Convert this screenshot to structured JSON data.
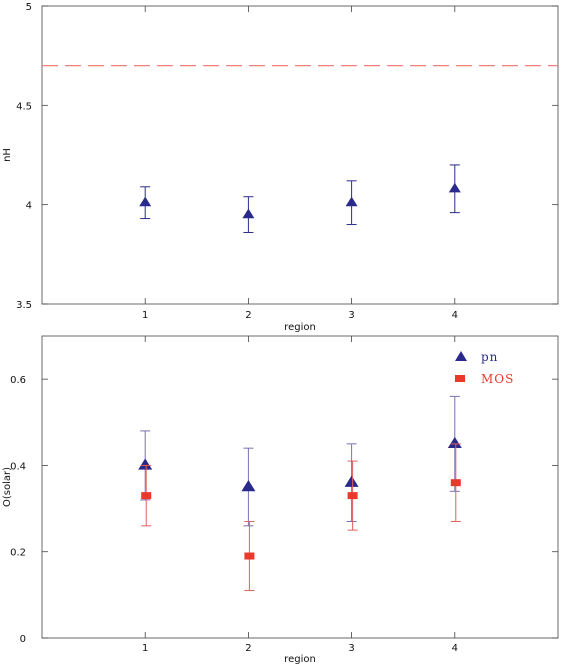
{
  "chart_data": [
    {
      "type": "scatter",
      "title": "",
      "xlabel": "region",
      "ylabel": "nH",
      "xlim": [
        0,
        5
      ],
      "ylim": [
        3.5,
        5
      ],
      "xticks": [
        "1",
        "2",
        "3",
        "4"
      ],
      "yticks": [
        "3.5",
        "4",
        "4.5",
        "5"
      ],
      "reference_line": {
        "y": 4.7,
        "style": "dashed",
        "color": "#f08080"
      },
      "series": [
        {
          "marker": "triangle",
          "color": "#2a2a8c",
          "points": [
            {
              "x": 1,
              "y": 4.01,
              "err_low": 3.93,
              "err_high": 4.09
            },
            {
              "x": 2,
              "y": 3.95,
              "err_low": 3.86,
              "err_high": 4.04
            },
            {
              "x": 3,
              "y": 4.01,
              "err_low": 3.9,
              "err_high": 4.12
            },
            {
              "x": 4,
              "y": 4.08,
              "err_low": 3.96,
              "err_high": 4.2
            }
          ]
        }
      ]
    },
    {
      "type": "scatter",
      "title": "",
      "xlabel": "region",
      "ylabel": "O(solar)",
      "xlim": [
        0,
        5
      ],
      "ylim": [
        0,
        0.7
      ],
      "xticks": [
        "1",
        "2",
        "3",
        "4"
      ],
      "yticks": [
        "0",
        "0.2",
        "0.4",
        "0.6"
      ],
      "legend_position": "top-right",
      "series": [
        {
          "name": "pn",
          "marker": "triangle",
          "color": "#2a2a8c",
          "errcolor": "#7c6fb2",
          "points": [
            {
              "x": 1,
              "y": 0.4,
              "err_low": 0.32,
              "err_high": 0.48
            },
            {
              "x": 2,
              "y": 0.35,
              "err_low": 0.26,
              "err_high": 0.44
            },
            {
              "x": 3,
              "y": 0.36,
              "err_low": 0.27,
              "err_high": 0.45
            },
            {
              "x": 4,
              "y": 0.45,
              "err_low": 0.34,
              "err_high": 0.56
            }
          ]
        },
        {
          "name": "MOS",
          "marker": "square",
          "color": "#e8392b",
          "errcolor": "#e0605a",
          "points": [
            {
              "x": 1,
              "y": 0.33,
              "err_low": 0.26,
              "err_high": 0.4
            },
            {
              "x": 2,
              "y": 0.19,
              "err_low": 0.11,
              "err_high": 0.27
            },
            {
              "x": 3,
              "y": 0.33,
              "err_low": 0.25,
              "err_high": 0.41
            },
            {
              "x": 4,
              "y": 0.36,
              "err_low": 0.27,
              "err_high": 0.45
            }
          ]
        }
      ]
    }
  ]
}
